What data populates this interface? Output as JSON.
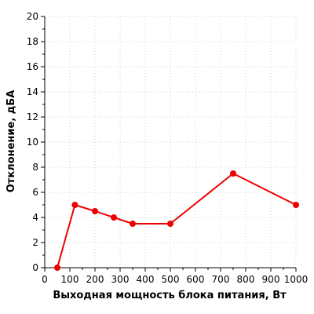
{
  "chart_data": {
    "type": "line",
    "xlabel": "Выходная мощность блока питания, Вт",
    "ylabel": "Отклонение, дБА",
    "xlim": [
      0,
      1000
    ],
    "ylim": [
      0,
      20
    ],
    "x_ticks": [
      0,
      100,
      200,
      300,
      400,
      500,
      600,
      700,
      800,
      900,
      1000
    ],
    "y_ticks": [
      0,
      2,
      4,
      6,
      8,
      10,
      12,
      14,
      16,
      18,
      20
    ],
    "grid": true,
    "series": [
      {
        "color": "#ee0000",
        "x": [
          50,
          120,
          200,
          275,
          350,
          500,
          750,
          1000
        ],
        "y": [
          0,
          5,
          4.5,
          4,
          3.5,
          3.5,
          7.5,
          5
        ]
      }
    ]
  }
}
